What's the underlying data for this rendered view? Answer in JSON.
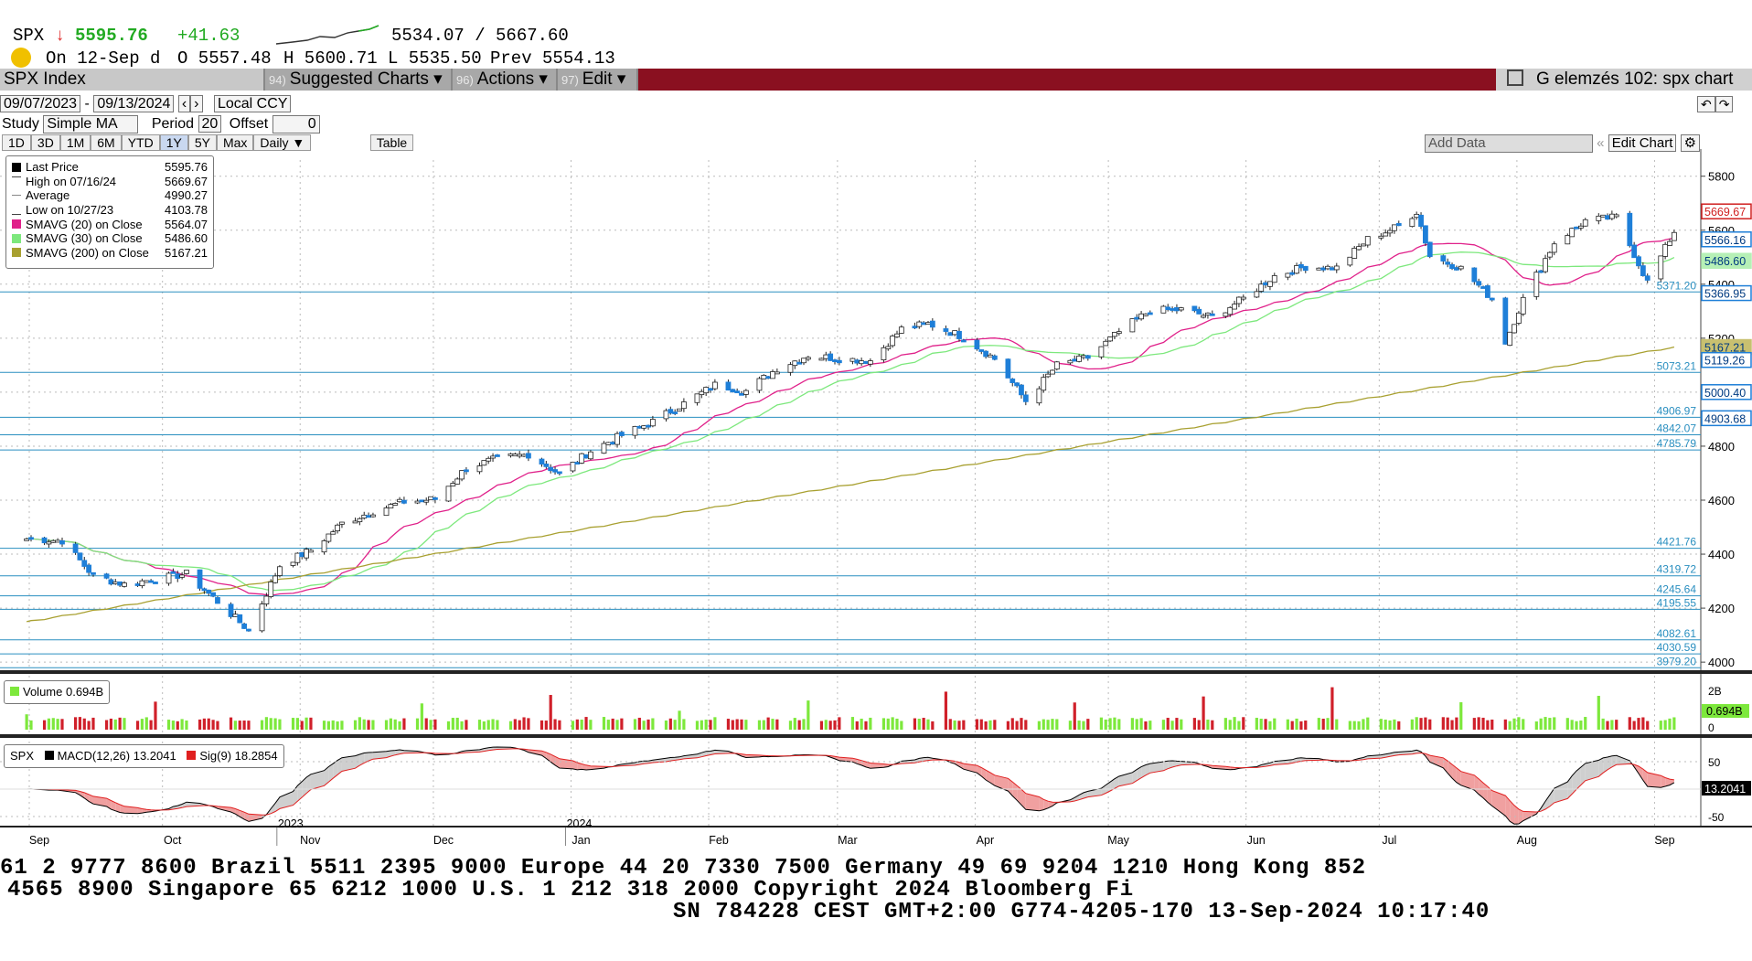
{
  "quote": {
    "ticker": "SPX",
    "arrow": "↓",
    "last": "5595.76",
    "change": "+41.63",
    "range": "5534.07 / 5667.60",
    "on_date": "On 12-Sep d",
    "open": "O 5557.48",
    "high": "H 5600.71",
    "low": "L 5535.50",
    "prev": "Prev  5554.13"
  },
  "titlebar": {
    "security": "SPX Index",
    "suggested_num": "94)",
    "suggested": "Suggested Charts ▾",
    "actions_num": "96)",
    "actions": "Actions ▾",
    "edit_num": "97)",
    "edit": "Edit ▾",
    "chart_name": "G elemzés 102: spx chart"
  },
  "controls": {
    "date_from": "09/07/2023",
    "date_to": "09/13/2024",
    "currency": "Local CCY",
    "study_label": "Study",
    "study_value": "Simple MA",
    "period_label": "Period",
    "period_value": "20",
    "offset_label": "Offset",
    "offset_value": "0",
    "ranges": [
      "1D",
      "3D",
      "1M",
      "6M",
      "YTD",
      "1Y",
      "5Y",
      "Max"
    ],
    "selected_range": "1Y",
    "frequency": "Daily ▼",
    "table": "Table",
    "add_data": "Add Data",
    "edit_chart": "Edit Chart"
  },
  "legend": [
    {
      "label": "Last Price",
      "value": "5595.76",
      "color": "#000000"
    },
    {
      "label": "High on 07/16/24",
      "value": "5669.67",
      "color": "#ffffff"
    },
    {
      "label": "Average",
      "value": "4990.27",
      "color": "#ffffff"
    },
    {
      "label": "Low on 10/27/23",
      "value": "4103.78",
      "color": "#ffffff"
    },
    {
      "label": "SMAVG (20)  on Close",
      "value": "5564.07",
      "color": "#e0218a"
    },
    {
      "label": "SMAVG (30)  on Close",
      "value": "5486.60",
      "color": "#7de87d"
    },
    {
      "label": "SMAVG (200)  on Close",
      "value": "5167.21",
      "color": "#a8a030"
    }
  ],
  "volume_panel": {
    "label": "Volume 0.694B",
    "ticks": [
      "2B",
      "0"
    ],
    "last_tag": "0.694B"
  },
  "macd_panel": {
    "label_spx": "SPX",
    "label_macd": "MACD(12,26) 13.2041",
    "label_sig": "Sig(9) 18.2854",
    "ticks": [
      "50",
      "-50"
    ],
    "last_tag": "13.2041"
  },
  "ticker_tape": {
    "line1": "61 2 9777 8600 Brazil 5511 2395 9000 Europe 44 20 7330 7500 Germany 49 69 9204 1210 Hong Kong 852",
    "line2": "4565 8900          Singapore 65 6212 1000          U.S. 1 212 318 2000          Copyright 2024 Bloomberg Fi",
    "line3": "SN 784228 CEST GMT+2:00 G774-4205-170 13-Sep-2024 10:17:40"
  },
  "chart_data": {
    "type": "line",
    "title": "SPX Index",
    "y_axis": {
      "ticks": [
        4000,
        4200,
        4400,
        4600,
        4800,
        5000,
        5200,
        5400,
        5600,
        5800
      ],
      "ylim": [
        3970,
        5860
      ],
      "side": "right"
    },
    "x_axis": {
      "months": [
        "Sep",
        "Oct",
        "Nov",
        "Dec",
        "Jan",
        "Feb",
        "Mar",
        "Apr",
        "May",
        "Jun",
        "Jul",
        "Aug",
        "Sep"
      ],
      "years": [
        "2023",
        "2024"
      ]
    },
    "grid": true,
    "legend_position": "top-left",
    "series": [
      {
        "name": "Last Price",
        "x": [
          "2023-09-07",
          "2023-09-15",
          "2023-09-22",
          "2023-09-29",
          "2023-10-06",
          "2023-10-13",
          "2023-10-20",
          "2023-10-27",
          "2023-11-03",
          "2023-11-10",
          "2023-11-17",
          "2023-11-24",
          "2023-12-01",
          "2023-12-08",
          "2023-12-15",
          "2023-12-22",
          "2023-12-29",
          "2024-01-05",
          "2024-01-12",
          "2024-01-19",
          "2024-01-26",
          "2024-02-02",
          "2024-02-09",
          "2024-02-16",
          "2024-02-23",
          "2024-03-01",
          "2024-03-08",
          "2024-03-15",
          "2024-03-22",
          "2024-03-28",
          "2024-04-05",
          "2024-04-12",
          "2024-04-19",
          "2024-04-26",
          "2024-05-03",
          "2024-05-10",
          "2024-05-17",
          "2024-05-24",
          "2024-05-31",
          "2024-06-07",
          "2024-06-14",
          "2024-06-21",
          "2024-06-28",
          "2024-07-05",
          "2024-07-12",
          "2024-07-16",
          "2024-07-19",
          "2024-07-26",
          "2024-08-02",
          "2024-08-05",
          "2024-08-09",
          "2024-08-16",
          "2024-08-23",
          "2024-08-30",
          "2024-09-06",
          "2024-09-12"
        ],
        "values": [
          4457,
          4450,
          4320,
          4288,
          4308,
          4327,
          4224,
          4117,
          4358,
          4415,
          4514,
          4559,
          4594,
          4604,
          4719,
          4754,
          4770,
          4697,
          4783,
          4840,
          4891,
          4958,
          5027,
          5005,
          5088,
          5137,
          5124,
          5117,
          5234,
          5254,
          5204,
          5123,
          4967,
          5100,
          5128,
          5223,
          5303,
          5305,
          5278,
          5347,
          5431,
          5465,
          5460,
          5567,
          5615,
          5669,
          5505,
          5459,
          5346,
          5186,
          5344,
          5554,
          5635,
          5648,
          5408,
          5596
        ]
      },
      {
        "name": "SMAVG (20)",
        "last": 5564.07
      },
      {
        "name": "SMAVG (30)",
        "last": 5486.6
      },
      {
        "name": "SMAVG (200)",
        "last": 5167.21
      }
    ],
    "price_tags": [
      {
        "value": "5669.67",
        "color": "#d02020"
      },
      {
        "value": "5566.16",
        "color": "#1e7fd8"
      },
      {
        "value": "5486.60",
        "color": "#b6f0b6"
      },
      {
        "value": "5366.95",
        "color": "#1e7fd8"
      },
      {
        "value": "5167.21",
        "color": "#c8c070"
      },
      {
        "value": "5119.26",
        "color": "#1e7fd8"
      },
      {
        "value": "5000.40",
        "color": "#1e7fd8"
      },
      {
        "value": "4903.68",
        "color": "#1e7fd8"
      }
    ],
    "horizontal_levels": [
      {
        "value": 5371.2,
        "label": "5371.20",
        "color": "#2a8fc0"
      },
      {
        "value": 5073.21,
        "label": "5073.21",
        "color": "#2a8fc0"
      },
      {
        "value": 4906.97,
        "label": "4906.97",
        "color": "#2a8fc0"
      },
      {
        "value": 4842.07,
        "label": "4842.07",
        "color": "#2a8fc0"
      },
      {
        "value": 4785.79,
        "label": "4785.79",
        "color": "#2a8fc0"
      },
      {
        "value": 4421.76,
        "label": "4421.76",
        "color": "#2a8fc0"
      },
      {
        "value": 4319.72,
        "label": "4319.72",
        "color": "#2a8fc0"
      },
      {
        "value": 4245.64,
        "label": "4245.64",
        "color": "#2a8fc0"
      },
      {
        "value": 4195.55,
        "label": "4195.55",
        "color": "#2a8fc0"
      },
      {
        "value": 4082.61,
        "label": "4082.61",
        "color": "#2a8fc0"
      },
      {
        "value": 4030.59,
        "label": "4030.59",
        "color": "#2a8fc0"
      },
      {
        "value": 3979.2,
        "label": "3979.20",
        "color": "#2a8fc0"
      }
    ],
    "colors": {
      "up": "#ffffff",
      "down": "#1e7fd8",
      "sma20": "#e0218a",
      "sma30": "#7de87d",
      "sma200": "#a8a030",
      "titlebar": "#8a1020"
    }
  }
}
